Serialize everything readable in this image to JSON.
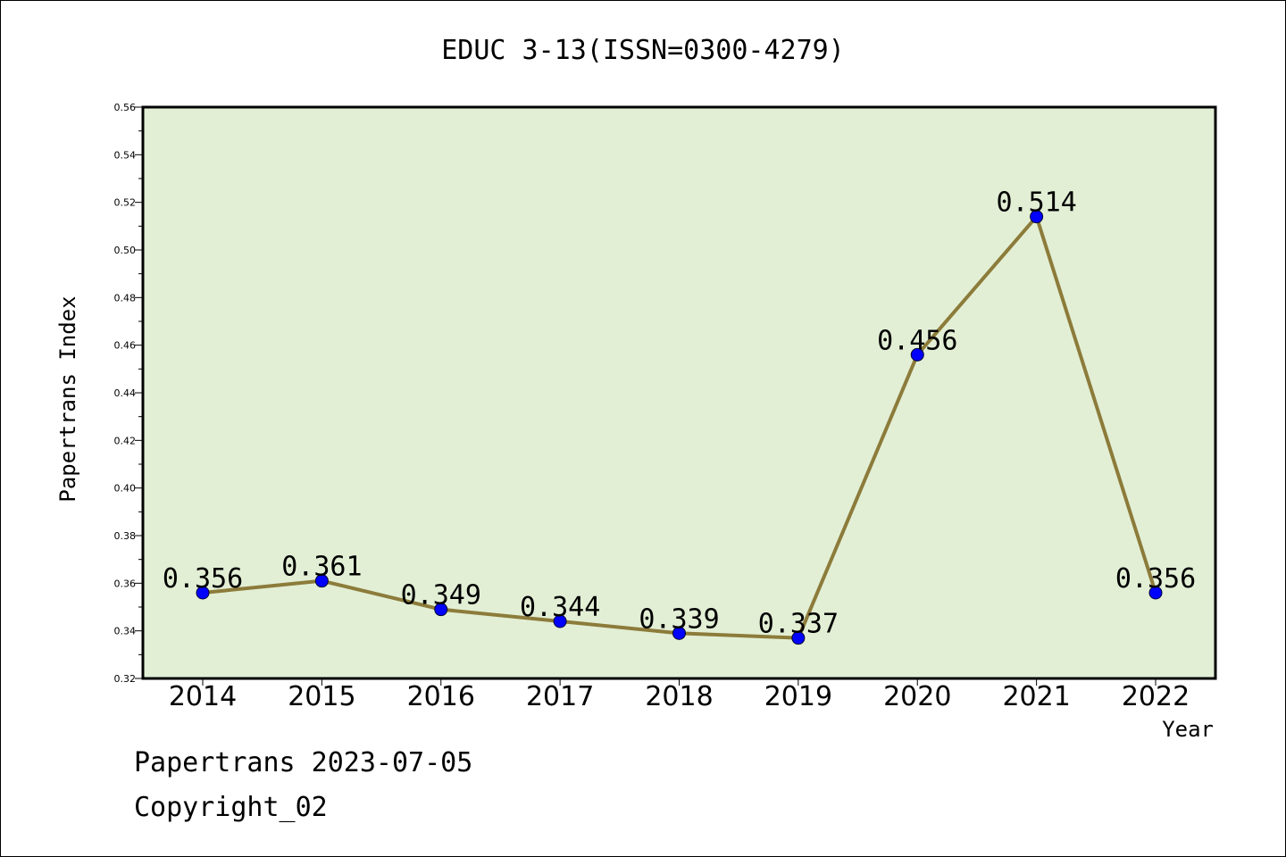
{
  "chart_data": {
    "type": "line",
    "title": "EDUC 3-13(ISSN=0300-4279)",
    "xlabel": "Year",
    "ylabel": "Papertrans Index",
    "categories": [
      "2014",
      "2015",
      "2016",
      "2017",
      "2018",
      "2019",
      "2020",
      "2021",
      "2022"
    ],
    "values": [
      0.356,
      0.361,
      0.349,
      0.344,
      0.339,
      0.337,
      0.456,
      0.514,
      0.356
    ],
    "data_labels": [
      "0.356",
      "0.361",
      "0.349",
      "0.344",
      "0.339",
      "0.337",
      "0.456",
      "0.514",
      "0.356"
    ],
    "ylim": [
      0.32,
      0.56
    ],
    "yticks": [
      "0.32",
      "0.34",
      "0.36",
      "0.38",
      "0.40",
      "0.42",
      "0.44",
      "0.46",
      "0.48",
      "0.50",
      "0.52",
      "0.54",
      "0.56"
    ],
    "grid": false,
    "colors": {
      "plot_background": "#e2efd5",
      "line": "#8c7b3a",
      "marker": "#0000ff"
    }
  },
  "footer": {
    "line1": "Papertrans 2023-07-05",
    "line2": "Copyright_02"
  }
}
